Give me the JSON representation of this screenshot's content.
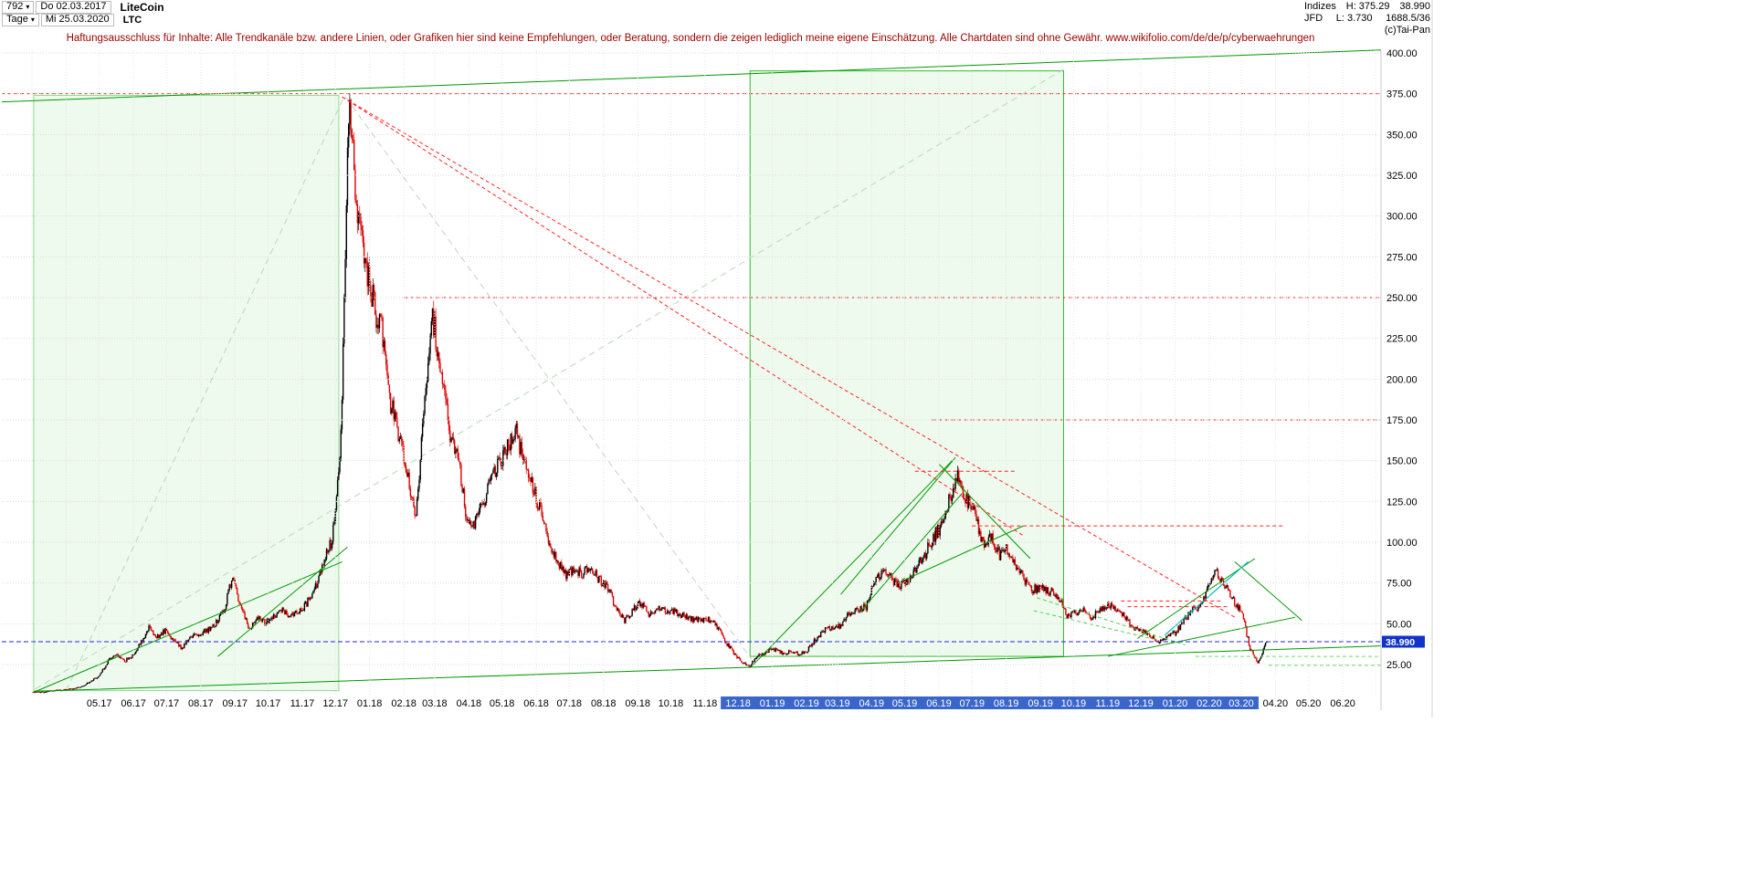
{
  "header": {
    "bars_count": "792",
    "date_from": "Do 02.03.2017",
    "title": "LiteCoin",
    "period": "Tage",
    "date_to": "Mi 25.03.2020",
    "symbol": "LTC",
    "right": {
      "exchange_label": "Indizes",
      "high_label": "H: 375.29",
      "last_price": "38.990",
      "feed": "JFD",
      "low_label": "L: 3.730",
      "volume": "1688.5/36",
      "copyright": "(c)Tai-Pan"
    }
  },
  "disclaimer": "Haftungsausschluss für Inhalte: Alle Trendkanäle bzw. andere Linien, oder Grafiken hier sind keine Empfehlungen, oder Beratung, sondern die zeigen lediglich meine eigene Einschätzung. Alle Chartdaten sind ohne Gewähr.  www.wikifolio.com/de/de/p/cyberwaehrungen",
  "chart_data": {
    "type": "candlestick",
    "title": "LiteCoin",
    "symbol": "LTC",
    "timeframe": "Tage",
    "start_date": "02.03.2017",
    "end_date": "25.03.2020",
    "high": 375.29,
    "low": 3.73,
    "last": 38.99,
    "last_label": "38.990",
    "ylim": [
      6,
      400
    ],
    "grid": true,
    "y_ticks": [
      "400.00",
      "375.00",
      "350.00",
      "325.00",
      "300.00",
      "275.00",
      "250.00",
      "225.00",
      "200.00",
      "175.00",
      "150.00",
      "125.00",
      "100.00",
      "75.00",
      "50.00",
      "25.00"
    ],
    "x_labels": [
      {
        "l": "05.17",
        "h": false
      },
      {
        "l": "06.17",
        "h": false
      },
      {
        "l": "07.17",
        "h": false
      },
      {
        "l": "08.17",
        "h": false
      },
      {
        "l": "09.17",
        "h": false
      },
      {
        "l": "10.17",
        "h": false
      },
      {
        "l": "11.17",
        "h": false
      },
      {
        "l": "12.17",
        "h": false
      },
      {
        "l": "01.18",
        "h": false
      },
      {
        "l": "02.18",
        "h": false
      },
      {
        "l": "03.18",
        "h": false
      },
      {
        "l": "04.18",
        "h": false
      },
      {
        "l": "05.18",
        "h": false
      },
      {
        "l": "06.18",
        "h": false
      },
      {
        "l": "07.18",
        "h": false
      },
      {
        "l": "08.18",
        "h": false
      },
      {
        "l": "09.18",
        "h": false
      },
      {
        "l": "10.18",
        "h": false
      },
      {
        "l": "11.18",
        "h": false
      },
      {
        "l": "12.18",
        "h": true
      },
      {
        "l": "01.19",
        "h": true
      },
      {
        "l": "02.19",
        "h": true
      },
      {
        "l": "03.19",
        "h": true
      },
      {
        "l": "04.19",
        "h": true
      },
      {
        "l": "05.19",
        "h": true
      },
      {
        "l": "06.19",
        "h": true
      },
      {
        "l": "07.19",
        "h": true
      },
      {
        "l": "08.19",
        "h": true
      },
      {
        "l": "09.19",
        "h": true
      },
      {
        "l": "10.19",
        "h": true
      },
      {
        "l": "11.19",
        "h": true
      },
      {
        "l": "12.19",
        "h": true
      },
      {
        "l": "01.20",
        "h": true
      },
      {
        "l": "02.20",
        "h": true
      },
      {
        "l": "03.20",
        "h": true
      },
      {
        "l": "04.20",
        "h": false
      },
      {
        "l": "05.20",
        "h": false
      },
      {
        "l": "06.20",
        "h": false
      }
    ],
    "weekly_closes": [
      8.2,
      8.0,
      8.6,
      9.2,
      9.6,
      10.5,
      11.5,
      14.5,
      18,
      26,
      32,
      27,
      30,
      38,
      48,
      42,
      46,
      40,
      35,
      42,
      43,
      46,
      50,
      58,
      78,
      60,
      47,
      54,
      51,
      54,
      58,
      55,
      57,
      63,
      72,
      88,
      102,
      160,
      370,
      300,
      268,
      245,
      230,
      185,
      165,
      140,
      112,
      180,
      240,
      205,
      170,
      155,
      118,
      112,
      122,
      138,
      148,
      160,
      168,
      150,
      135,
      118,
      98,
      88,
      80,
      84,
      80,
      86,
      77,
      72,
      60,
      52,
      58,
      63,
      56,
      59,
      58,
      58,
      55,
      53,
      52,
      53,
      49,
      40,
      33,
      27,
      24,
      30,
      33,
      34,
      32,
      33,
      31,
      34,
      41,
      46,
      48,
      49,
      56,
      59,
      60,
      76,
      82,
      78,
      73,
      76,
      84,
      92,
      103,
      110,
      128,
      140,
      125,
      120,
      98,
      104,
      92,
      96,
      86,
      76,
      71,
      73,
      70,
      67,
      55,
      56,
      59,
      54,
      58,
      62,
      59,
      54,
      47,
      45,
      43,
      39,
      42,
      44,
      51,
      58,
      61,
      72,
      82,
      74,
      64,
      58,
      35,
      26,
      38.99
    ],
    "annotations_under": [
      {
        "type": "box",
        "m1": 0.05,
        "m2": 9.1,
        "p1": 9,
        "p2": 374,
        "stroke": "#8fdc8f",
        "fill": "rgba(120,220,120,0.13)"
      },
      {
        "type": "box",
        "m1": 21.35,
        "m2": 30.7,
        "p1": 30,
        "p2": 389,
        "stroke": "#33bb33",
        "fill": "rgba(120,220,120,0.13)"
      },
      {
        "type": "line",
        "m1": 0.1,
        "m2": 30.7,
        "p1": 10,
        "p2": 390,
        "color": "#b8d8b8",
        "dash": "7 5",
        "w": 1
      },
      {
        "type": "line",
        "m1": 1.0,
        "m2": 9.25,
        "p1": 9,
        "p2": 373,
        "color": "#b8d8b8",
        "dash": "7 5",
        "w": 1
      },
      {
        "type": "line",
        "m1": 9.3,
        "m2": 21.4,
        "p1": 373,
        "p2": 28,
        "color": "#cccccc",
        "dash": "7 5",
        "w": 1
      }
    ],
    "annotations_over": [
      {
        "type": "line",
        "m1": -1,
        "m2": 40.4,
        "p1": 370,
        "p2": 402,
        "color": "#009900",
        "w": 1
      },
      {
        "type": "line",
        "m1": 0.05,
        "m2": 40.3,
        "p1": 8.5,
        "p2": 36.5,
        "color": "#009900",
        "w": 1
      },
      {
        "type": "line",
        "m1": 0.05,
        "m2": 9.2,
        "p1": 8,
        "p2": 88,
        "color": "#009900",
        "w": 1
      },
      {
        "type": "line",
        "m1": 5.5,
        "m2": 9.35,
        "p1": 30,
        "p2": 97,
        "color": "#009900",
        "w": 1
      },
      {
        "type": "line",
        "m1": 21.4,
        "m2": 27.4,
        "p1": 24,
        "p2": 150,
        "color": "#009900",
        "w": 1
      },
      {
        "type": "line",
        "m1": 24.1,
        "m2": 27.5,
        "p1": 68,
        "p2": 152,
        "color": "#009900",
        "w": 1
      },
      {
        "type": "line",
        "m1": 24.7,
        "m2": 27.7,
        "p1": 58,
        "p2": 130,
        "color": "#009900",
        "w": 1
      },
      {
        "type": "line",
        "m1": 27.0,
        "m2": 29.7,
        "p1": 148,
        "p2": 90,
        "color": "#009900",
        "w": 1
      },
      {
        "type": "line",
        "m1": 25.9,
        "m2": 29.5,
        "p1": 76,
        "p2": 110,
        "color": "#009900",
        "w": 1
      },
      {
        "type": "line",
        "m1": 29.9,
        "m2": 34.3,
        "p1": 66,
        "p2": 37,
        "color": "#55cc55",
        "dash": "4 3",
        "w": 1
      },
      {
        "type": "line",
        "m1": 29.8,
        "m2": 33.5,
        "p1": 58,
        "p2": 40,
        "color": "#55cc55",
        "dash": "4 3",
        "w": 1
      },
      {
        "type": "line",
        "m1": 32.9,
        "m2": 36.4,
        "p1": 41,
        "p2": 90,
        "color": "#009900",
        "w": 1
      },
      {
        "type": "line",
        "m1": 32.0,
        "m2": 37.6,
        "p1": 30,
        "p2": 54,
        "color": "#009900",
        "w": 1
      },
      {
        "type": "line",
        "m1": 35.8,
        "m2": 37.8,
        "p1": 88,
        "p2": 52,
        "color": "#009900",
        "w": 1
      },
      {
        "type": "line",
        "m1": 33.7,
        "m2": 36.2,
        "p1": 43,
        "p2": 88,
        "color": "#00b8b8",
        "w": 1.2
      },
      {
        "type": "hline",
        "p": 30,
        "m1": 34.6,
        "m2": 40.3,
        "color": "#66dd66",
        "dash": "4 3",
        "w": 1
      },
      {
        "type": "hline",
        "p": 24.5,
        "m1": 36.8,
        "m2": 40.3,
        "color": "#66dd66",
        "dash": "4 3",
        "w": 1
      },
      {
        "type": "hline",
        "p": 375,
        "m1": -1,
        "m2": 40.3,
        "color": "#ff2222",
        "dash": "4 3",
        "w": 1
      },
      {
        "type": "hline",
        "p": 250,
        "m1": 11.0,
        "m2": 40.3,
        "color": "#ff2222",
        "dash": "4 3",
        "w": 1
      },
      {
        "type": "hline",
        "p": 175,
        "m1": 26.8,
        "m2": 40.3,
        "color": "#ff2222",
        "dash": "4 3",
        "w": 1
      },
      {
        "type": "hline",
        "p": 143.5,
        "m1": 26.3,
        "m2": 29.3,
        "color": "#ff2222",
        "dash": "4 3",
        "w": 1
      },
      {
        "type": "hline",
        "p": 110,
        "m1": 28.0,
        "m2": 37.3,
        "color": "#ff2222",
        "dash": "4 3",
        "w": 1
      },
      {
        "type": "hline",
        "p": 64,
        "m1": 32.4,
        "m2": 35.4,
        "color": "#ff2222",
        "dash": "4 3",
        "w": 1
      },
      {
        "type": "hline",
        "p": 60.5,
        "m1": 32.6,
        "m2": 35.6,
        "color": "#ff2222",
        "dash": "4 3",
        "w": 1
      },
      {
        "type": "line",
        "m1": 9.2,
        "m2": 35.8,
        "p1": 373,
        "p2": 54,
        "color": "#ff2222",
        "dash": "4 3",
        "w": 1
      },
      {
        "type": "line",
        "m1": 9.2,
        "m2": 29.5,
        "p1": 373,
        "p2": 104,
        "color": "#ff2222",
        "dash": "4 3",
        "w": 1
      }
    ],
    "colors": {
      "candle_up": "#000000",
      "candle_down": "#dd0000",
      "grid": "#d9d9d9",
      "current_price": "#2222ee",
      "current_price_tag_bg": "#1133cc",
      "x_highlight_bg": "#3a66cc"
    }
  }
}
